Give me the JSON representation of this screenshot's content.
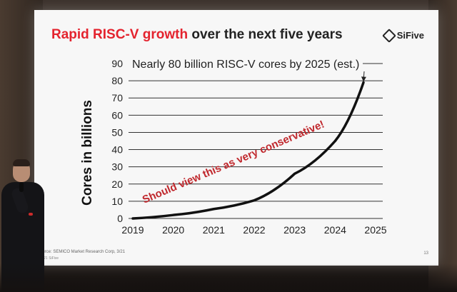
{
  "slide": {
    "title_main": "Rapid RISC-V growth",
    "title_rest": " over the next five years",
    "brand": "SiFive",
    "source": "Source: SEMICO Market Research Corp, 3/21",
    "copyright": "©2021 SiFive",
    "page_number": "13"
  },
  "chart_data": {
    "type": "line",
    "title": "Nearly 80 billion RISC-V cores by 2025 (est.)",
    "ylabel": "Cores in billions",
    "xlabel": "",
    "x": [
      2019,
      2020,
      2021,
      2022,
      2023,
      2024,
      2025
    ],
    "x_ticks": [
      "2019",
      "2020",
      "2021",
      "2022",
      "2023",
      "2024",
      "2025"
    ],
    "y_ticks": [
      "0",
      "10",
      "20",
      "30",
      "40",
      "50",
      "60",
      "70",
      "80",
      "90"
    ],
    "ylim": [
      0,
      90
    ],
    "grid": true,
    "series": [
      {
        "x": [
          2019,
          2020,
          2021,
          2022,
          2023,
          2024,
          2024.7
        ],
        "values": [
          0,
          2,
          5.5,
          10.5,
          26,
          45,
          79
        ],
        "color": "#111111"
      }
    ],
    "annotation": "Should view this as very conservative!",
    "annotation_color": "#c0282d",
    "arrow_target": {
      "x": 2024.7,
      "y": 79
    }
  }
}
